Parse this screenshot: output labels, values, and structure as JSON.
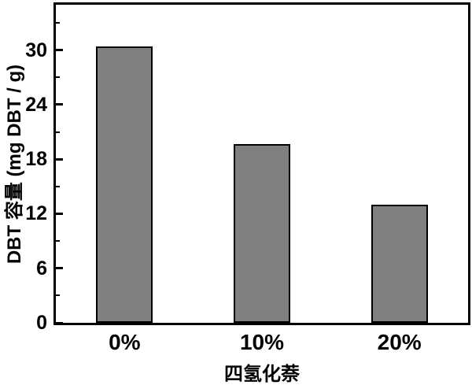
{
  "chart_data": {
    "type": "bar",
    "categories": [
      "0%",
      "10%",
      "20%"
    ],
    "values": [
      30.4,
      19.7,
      13.0
    ],
    "title": "",
    "xlabel": "四氢化萘",
    "ylabel": "DBT 容量 (mg DBT / g)",
    "ylim": [
      0,
      35
    ],
    "y_major_ticks": [
      0,
      6,
      12,
      18,
      24,
      30
    ],
    "y_minor_ticks": [
      3,
      9,
      15,
      21,
      27,
      33
    ],
    "y_tick_labels": [
      "0",
      "6",
      "12",
      "18",
      "24",
      "30"
    ],
    "grid": false,
    "legend_position": "none",
    "colors": {
      "bar_fill": "#808080",
      "bar_border": "#000000",
      "axis": "#000000",
      "background": "#ffffff"
    }
  }
}
